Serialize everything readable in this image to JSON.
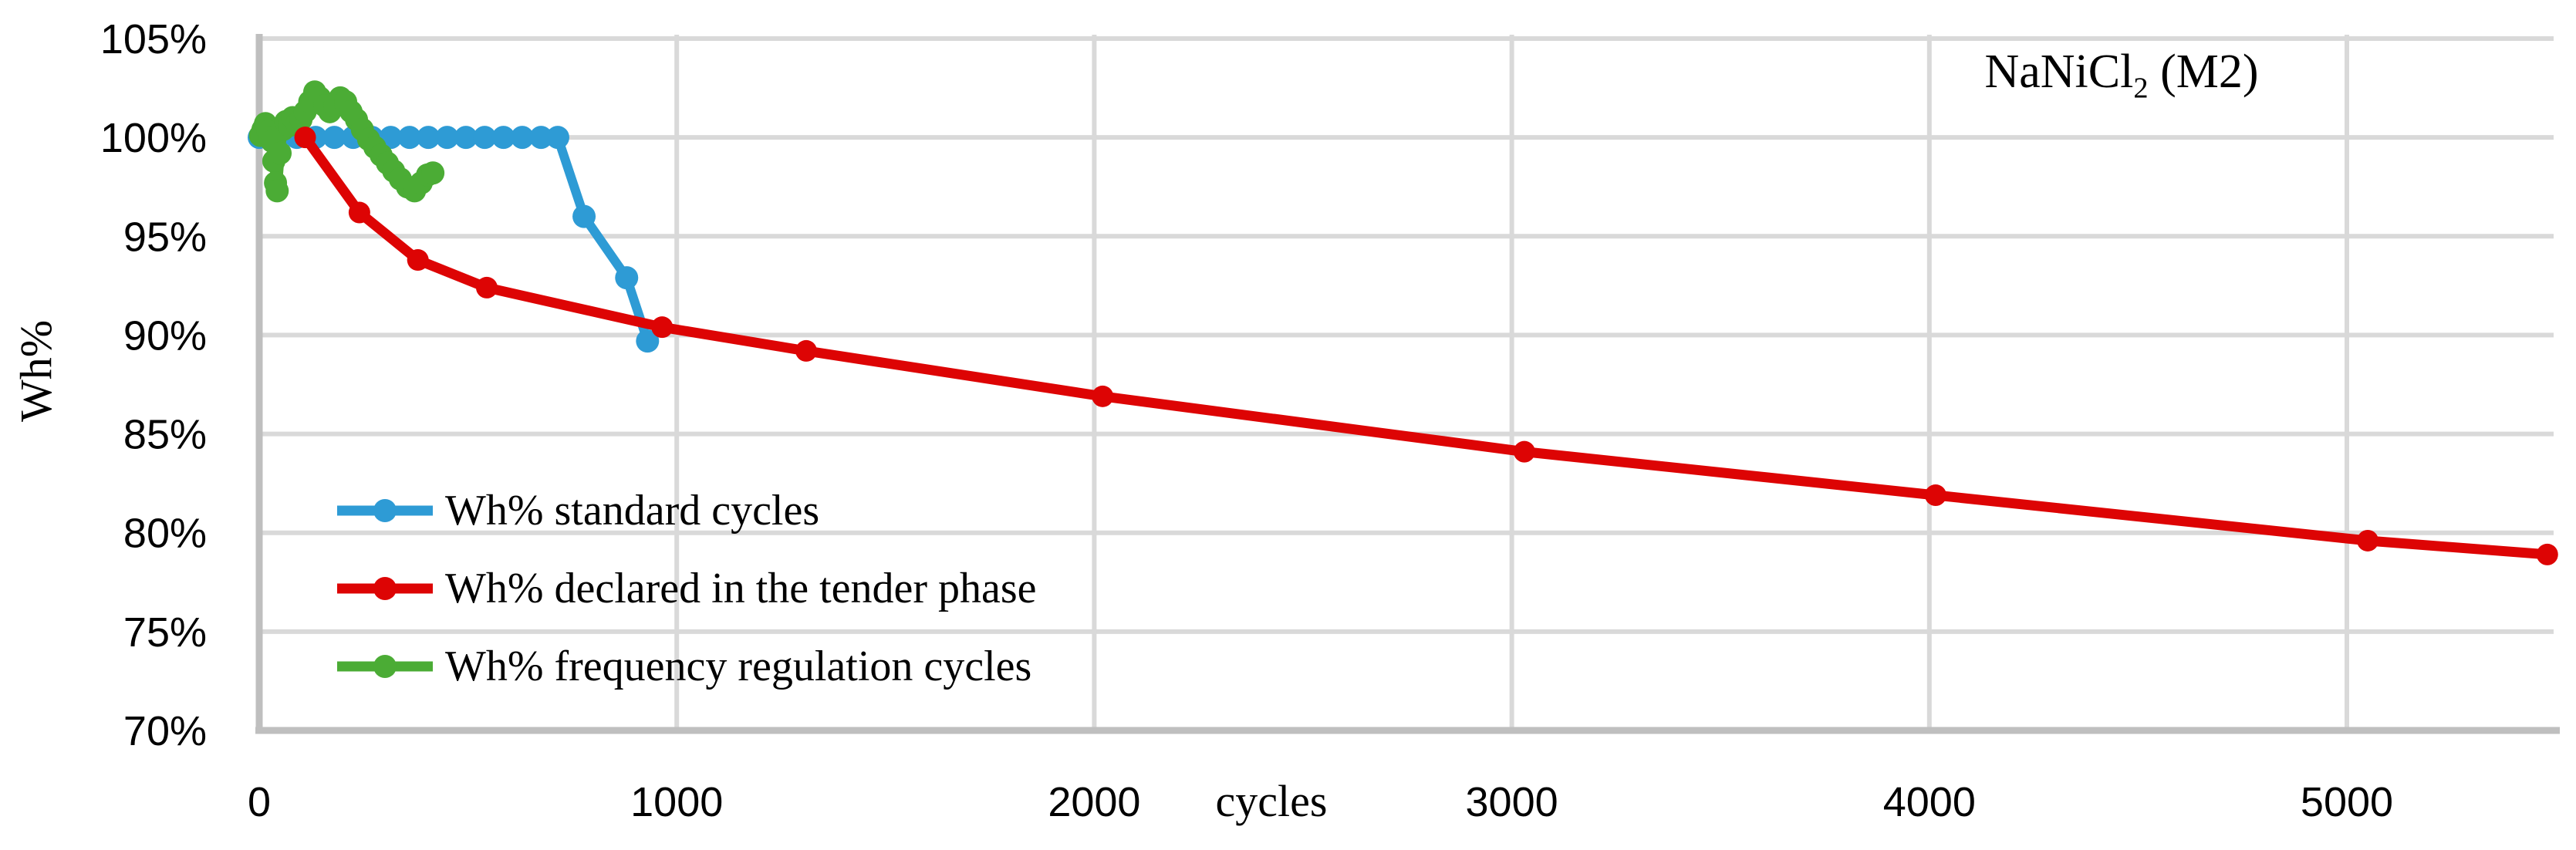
{
  "title": {
    "formula": "NaNiCl",
    "subscript": "2",
    "suffix": " (M2)"
  },
  "axes": {
    "y_title": "Wh%",
    "x_title": "cycles",
    "y_tick_suffix": "%"
  },
  "colors": {
    "blue_series": "#2E9BD5",
    "red_series": "#DD0404",
    "green_series": "#4BAC35",
    "gridline": "#D9D9D9",
    "axis_line": "#BFBFBF",
    "text": "#000000"
  },
  "chart_data": {
    "type": "line",
    "title": "NaNiCl2 (M2)",
    "xlabel": "cycles",
    "ylabel": "Wh%",
    "xlim": [
      0,
      5500
    ],
    "ylim": [
      70,
      105
    ],
    "x_ticks": [
      0,
      1000,
      2000,
      3000,
      4000,
      5000
    ],
    "y_ticks": [
      105,
      100,
      95,
      90,
      85,
      80,
      75,
      70
    ],
    "grid": true,
    "legend_position": "inside lower-left",
    "series": [
      {
        "name": "Wh% standard cycles",
        "color": "#2E9BD5",
        "points": [
          [
            0,
            100
          ],
          [
            45,
            100
          ],
          [
            90,
            100
          ],
          [
            135,
            100
          ],
          [
            180,
            100
          ],
          [
            225,
            100
          ],
          [
            270,
            100
          ],
          [
            315,
            100
          ],
          [
            360,
            100
          ],
          [
            405,
            100
          ],
          [
            450,
            100
          ],
          [
            495,
            100
          ],
          [
            540,
            100
          ],
          [
            585,
            100
          ],
          [
            630,
            100
          ],
          [
            675,
            100
          ],
          [
            715,
            100
          ],
          [
            778,
            96.0
          ],
          [
            880,
            92.9
          ],
          [
            930,
            89.7
          ]
        ]
      },
      {
        "name": "Wh% frequency regulation cycles",
        "color": "#4BAC35",
        "points": [
          [
            3,
            100.1
          ],
          [
            9,
            100.4
          ],
          [
            15,
            100.7
          ],
          [
            21,
            100.3
          ],
          [
            27,
            100.0
          ],
          [
            31,
            99.8
          ],
          [
            35,
            98.8
          ],
          [
            39,
            97.7
          ],
          [
            43,
            97.3
          ],
          [
            50,
            99.2
          ],
          [
            57,
            100.4
          ],
          [
            64,
            100.8
          ],
          [
            72,
            100.6
          ],
          [
            80,
            101.0
          ],
          [
            90,
            100.7
          ],
          [
            100,
            100.9
          ],
          [
            110,
            101.3
          ],
          [
            121,
            101.8
          ],
          [
            133,
            102.3
          ],
          [
            145,
            102.0
          ],
          [
            157,
            101.6
          ],
          [
            169,
            101.3
          ],
          [
            181,
            101.6
          ],
          [
            194,
            102.0
          ],
          [
            207,
            101.8
          ],
          [
            220,
            101.3
          ],
          [
            233,
            100.9
          ],
          [
            247,
            100.4
          ],
          [
            262,
            99.9
          ],
          [
            277,
            99.5
          ],
          [
            292,
            99.1
          ],
          [
            307,
            98.7
          ],
          [
            322,
            98.3
          ],
          [
            338,
            97.9
          ],
          [
            355,
            97.5
          ],
          [
            372,
            97.3
          ],
          [
            388,
            97.7
          ],
          [
            403,
            98.1
          ],
          [
            416,
            98.2
          ]
        ]
      },
      {
        "name": "Wh% declared in the tender phase",
        "color": "#DD0404",
        "points": [
          [
            110,
            100
          ],
          [
            240,
            96.2
          ],
          [
            380,
            93.8
          ],
          [
            545,
            92.4
          ],
          [
            965,
            90.4
          ],
          [
            1310,
            89.2
          ],
          [
            2020,
            86.9
          ],
          [
            3030,
            84.1
          ],
          [
            4015,
            81.9
          ],
          [
            5050,
            79.6
          ],
          [
            5480,
            78.9
          ]
        ]
      }
    ],
    "legend_order": [
      "Wh% standard cycles",
      "Wh% declared in the tender phase",
      "Wh% frequency regulation cycles"
    ]
  }
}
